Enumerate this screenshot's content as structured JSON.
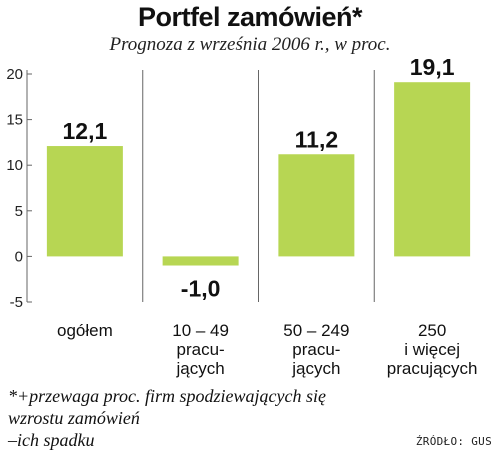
{
  "title": "Portfel zamówień*",
  "subtitle": "Prognoza z września 2006 r., w proc.",
  "chart_data": {
    "type": "bar",
    "categories": [
      [
        "ogółem"
      ],
      [
        "10 – 49",
        "pracu-",
        "jących"
      ],
      [
        "50 – 249",
        "pracu-",
        "jących"
      ],
      [
        "250",
        "i więcej",
        "pracujących"
      ]
    ],
    "value_labels": [
      "12,1",
      "-1,0",
      "11,2",
      "19,1"
    ],
    "values": [
      12.1,
      -1.0,
      11.2,
      19.1
    ],
    "ylim": [
      -5,
      20
    ],
    "yticks": [
      20,
      15,
      10,
      5,
      0,
      -5
    ],
    "grid": false,
    "bar_color": "#b7d653"
  },
  "footnote": {
    "lines": [
      "*+przewaga proc. firm spodziewających się",
      "wzrostu zamówień",
      "–ich spadku"
    ]
  },
  "source": "ŹRÓDŁO: GUS"
}
